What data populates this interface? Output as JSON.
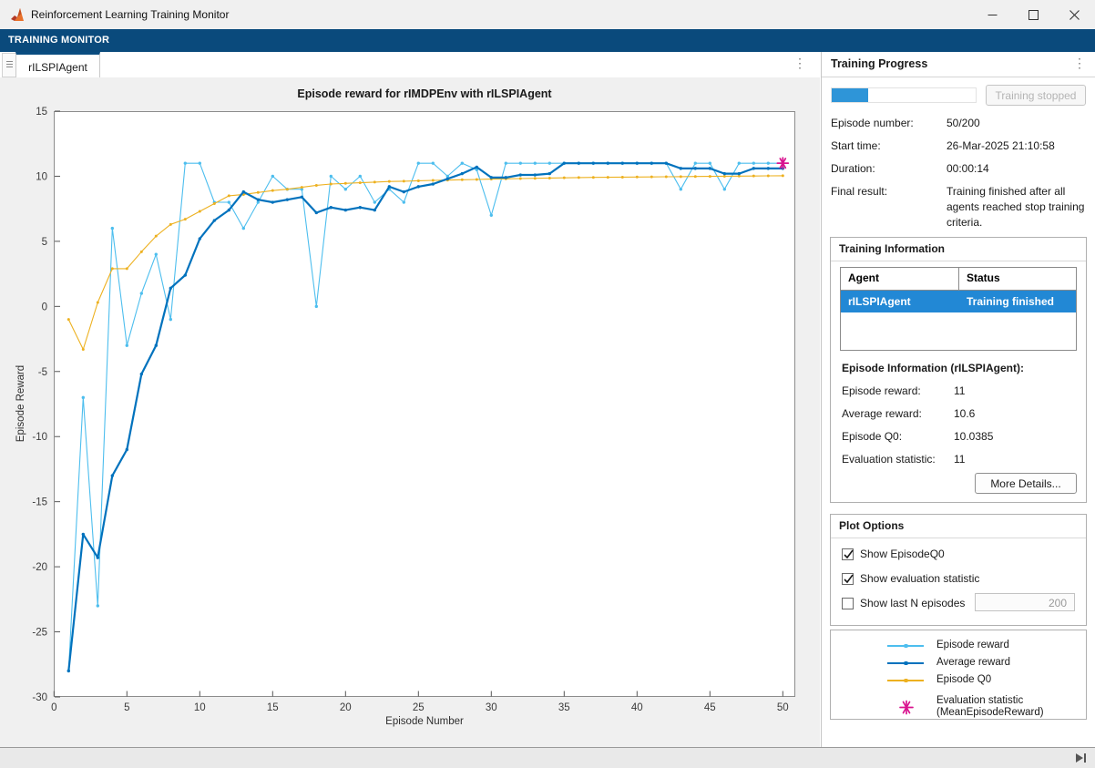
{
  "window": {
    "title": "Reinforcement Learning Training Monitor"
  },
  "toolstrip": {
    "tab_label": "TRAINING MONITOR"
  },
  "document": {
    "tab_label": "rILSPIAgent"
  },
  "colors": {
    "toolstrip_blue": "#0a4a7c",
    "tab_accent_blue": "#0a4c80",
    "progress_fill_blue": "#2e95d8",
    "table_selection_blue": "#2288d5",
    "episode_reward": "#4DBEEE",
    "average_reward": "#0072BD",
    "episode_q0": "#EDB120",
    "evaluation_statistic": "#D9138F"
  },
  "training_progress": {
    "panel_title": "Training Progress",
    "progress_percent": 25,
    "stop_button_label": "Training stopped",
    "fields": [
      {
        "label": "Episode number:",
        "value": "50/200"
      },
      {
        "label": "Start time:",
        "value": "26-Mar-2025 21:10:58"
      },
      {
        "label": "Duration:",
        "value": "00:00:14"
      },
      {
        "label": "Final result:",
        "value": "Training finished after all agents reached stop training criteria."
      }
    ]
  },
  "training_information": {
    "panel_title": "Training Information",
    "table": {
      "headers": [
        "Agent",
        "Status"
      ],
      "rows": [
        {
          "agent": "rILSPIAgent",
          "status": "Training finished",
          "selected": true
        }
      ]
    },
    "episode_info_title": "Episode Information (rILSPIAgent):",
    "fields": [
      {
        "label": "Episode reward:",
        "value": "11"
      },
      {
        "label": "Average reward:",
        "value": "10.6"
      },
      {
        "label": "Episode Q0:",
        "value": "10.0385"
      },
      {
        "label": "Evaluation statistic:",
        "value": "11"
      }
    ],
    "more_details_label": "More Details..."
  },
  "plot_options": {
    "panel_title": "Plot Options",
    "checkboxes": [
      {
        "label": "Show EpisodeQ0",
        "checked": true
      },
      {
        "label": "Show evaluation statistic",
        "checked": true
      },
      {
        "label": "Show last N episodes",
        "checked": false
      }
    ],
    "last_n_value": "200"
  },
  "legend": {
    "entries": [
      {
        "label": "Episode reward",
        "lines": [
          "Episode reward"
        ],
        "color": "#4DBEEE",
        "marker": "line-dot"
      },
      {
        "label": "Average reward",
        "lines": [
          "Average reward"
        ],
        "color": "#0072BD",
        "marker": "line-dot"
      },
      {
        "label": "Episode Q0",
        "lines": [
          "Episode Q0"
        ],
        "color": "#EDB120",
        "marker": "line-dot"
      },
      {
        "label": "Evaluation statistic (MeanEpisodeReward)",
        "lines": [
          "Evaluation statistic",
          "(MeanEpisodeReward)"
        ],
        "color": "#D9138F",
        "marker": "asterisk"
      }
    ]
  },
  "chart_data": {
    "type": "line",
    "title": "Episode reward for rIMDPEnv with rILSPIAgent",
    "xlabel": "Episode Number",
    "ylabel": "Episode Reward",
    "xlim": [
      0,
      50.9
    ],
    "ylim": [
      -30,
      15
    ],
    "xticks": [
      0,
      5,
      10,
      15,
      20,
      25,
      30,
      35,
      40,
      45,
      50
    ],
    "yticks": [
      -30,
      -25,
      -20,
      -15,
      -10,
      -5,
      0,
      5,
      10,
      15
    ],
    "grid": false,
    "legend_position": "separate-panel",
    "x_first": 1,
    "x_step": 1,
    "series": [
      {
        "name": "Episode reward",
        "color": "#4DBEEE",
        "line_width": 1.1,
        "marker_r": 1.7,
        "values": [
          -28,
          -7,
          -23,
          6,
          -3,
          1,
          4,
          -1,
          11,
          11,
          8,
          8,
          6,
          8,
          10,
          9,
          9,
          0,
          10,
          9,
          10,
          8,
          9,
          8,
          11,
          11,
          10,
          11,
          10.5,
          7,
          11,
          11,
          11,
          11,
          11,
          11,
          11,
          11,
          11,
          11,
          11,
          11,
          9,
          11,
          11,
          9,
          11,
          11,
          11,
          11
        ]
      },
      {
        "name": "Average reward",
        "color": "#0072BD",
        "line_width": 2.2,
        "marker_r": 1.7,
        "values": [
          -28,
          -17.5,
          -19.3,
          -13,
          -11,
          -5.2,
          -3,
          1.4,
          2.4,
          5.2,
          6.6,
          7.4,
          8.8,
          8.2,
          8,
          8.2,
          8.4,
          7.2,
          7.6,
          7.4,
          7.6,
          7.4,
          9.2,
          8.8,
          9.2,
          9.4,
          9.8,
          10.2,
          10.7,
          9.9,
          9.9,
          10.1,
          10.1,
          10.2,
          11,
          11,
          11,
          11,
          11,
          11,
          11,
          11,
          10.6,
          10.6,
          10.6,
          10.2,
          10.2,
          10.6,
          10.6,
          10.6
        ]
      },
      {
        "name": "Episode Q0",
        "color": "#EDB120",
        "line_width": 1.1,
        "marker_r": 1.5,
        "values": [
          -1,
          -3.3,
          0.3,
          2.9,
          2.9,
          4.2,
          5.4,
          6.3,
          6.7,
          7.3,
          7.9,
          8.5,
          8.6,
          8.75,
          8.9,
          9.0,
          9.15,
          9.3,
          9.4,
          9.45,
          9.5,
          9.55,
          9.6,
          9.62,
          9.65,
          9.68,
          9.7,
          9.73,
          9.75,
          9.78,
          9.8,
          9.82,
          9.84,
          9.86,
          9.88,
          9.9,
          9.91,
          9.92,
          9.93,
          9.94,
          9.95,
          9.96,
          9.97,
          9.98,
          9.99,
          10.0,
          10.01,
          10.02,
          10.03,
          10.0385
        ]
      }
    ],
    "evaluation_statistic": {
      "name": "Evaluation statistic (MeanEpisodeReward)",
      "x": 50,
      "y": 11,
      "color": "#D9138F",
      "marker": "asterisk"
    }
  }
}
